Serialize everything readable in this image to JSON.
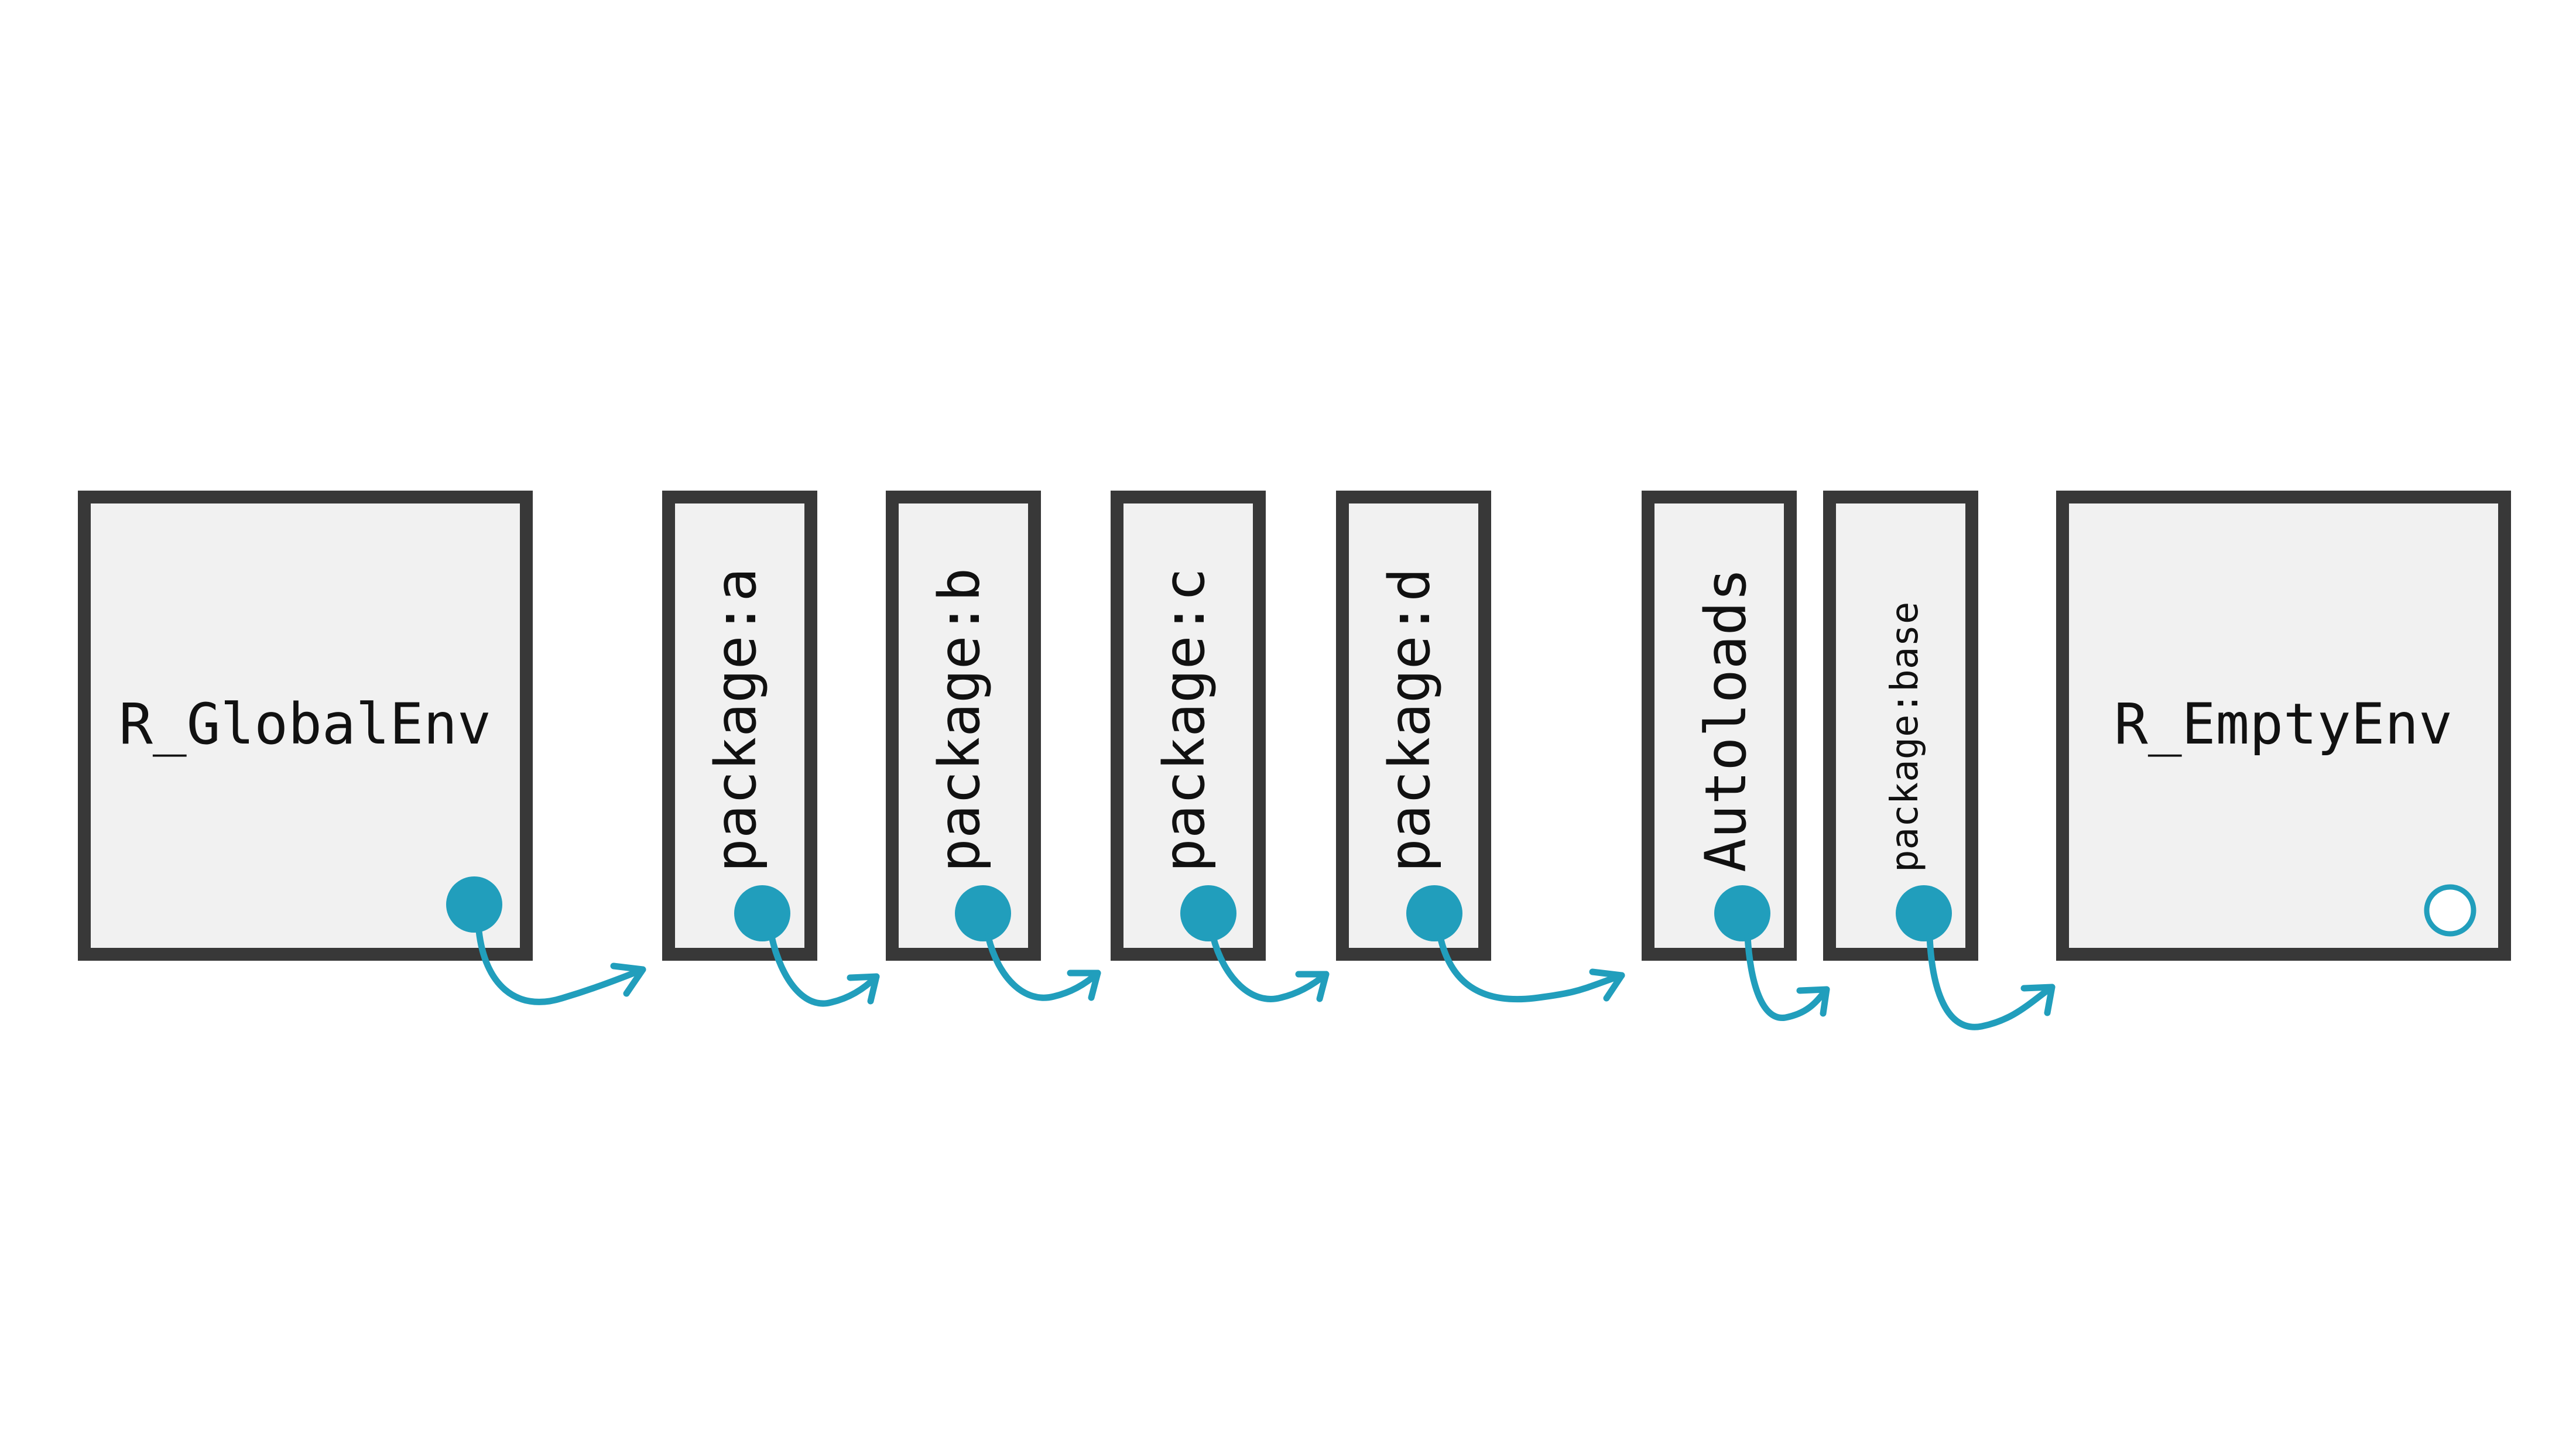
{
  "diagram": {
    "accent_color": "#219ebc",
    "box_fill_color": "#f1f1f1",
    "box_stroke_color": "#383838",
    "environments": [
      {
        "id": "global",
        "label": "R_GlobalEnv",
        "orientation": "horizontal",
        "parent_marker": "filled"
      },
      {
        "id": "pkg-a",
        "label": "package:a",
        "orientation": "vertical",
        "parent_marker": "filled"
      },
      {
        "id": "pkg-b",
        "label": "package:b",
        "orientation": "vertical",
        "parent_marker": "filled"
      },
      {
        "id": "pkg-c",
        "label": "package:c",
        "orientation": "vertical",
        "parent_marker": "filled"
      },
      {
        "id": "pkg-d",
        "label": "package:d",
        "orientation": "vertical",
        "parent_marker": "filled"
      },
      {
        "id": "autoloads",
        "label": "Autoloads",
        "orientation": "vertical",
        "parent_marker": "filled"
      },
      {
        "id": "pkg-base",
        "label": "package:base",
        "orientation": "vertical",
        "parent_marker": "filled"
      },
      {
        "id": "empty",
        "label": "R_EmptyEnv",
        "orientation": "horizontal",
        "parent_marker": "empty"
      }
    ],
    "parent_links": [
      {
        "from": "global",
        "to": "pkg-a"
      },
      {
        "from": "pkg-a",
        "to": "pkg-b"
      },
      {
        "from": "pkg-b",
        "to": "pkg-c"
      },
      {
        "from": "pkg-c",
        "to": "pkg-d"
      },
      {
        "from": "pkg-d",
        "to": "autoloads"
      },
      {
        "from": "autoloads",
        "to": "pkg-base"
      },
      {
        "from": "pkg-base",
        "to": "empty"
      }
    ]
  }
}
